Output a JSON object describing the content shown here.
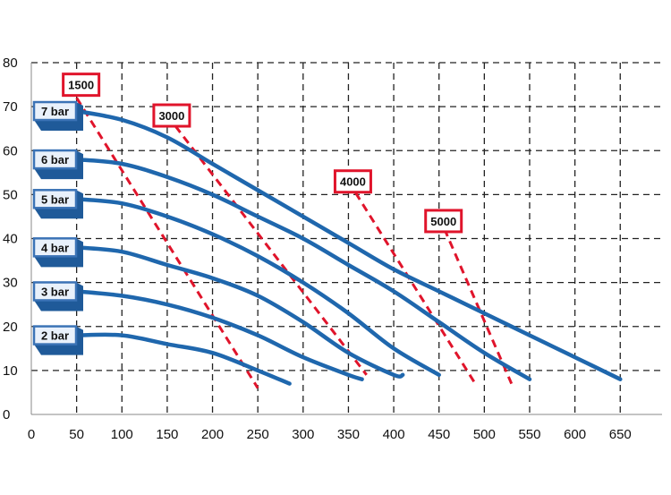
{
  "chart_data": {
    "type": "line",
    "title": "",
    "xlabel": "",
    "ylabel": "",
    "xlim": [
      0,
      700
    ],
    "ylim": [
      0,
      80
    ],
    "x_ticks": [
      "0",
      "50",
      "100",
      "150",
      "200",
      "250",
      "300",
      "350",
      "400",
      "450",
      "500",
      "550",
      "600",
      "650"
    ],
    "y_ticks": [
      "0",
      "10",
      "20",
      "30",
      "40",
      "50",
      "60",
      "70",
      "80"
    ],
    "grid": true,
    "colors": {
      "curve": "#1f67ad",
      "speed_line": "#e0142b",
      "label_box": "#3b73b6"
    },
    "series": [
      {
        "name": "7 bar",
        "x": [
          50,
          100,
          150,
          200,
          250,
          300,
          350,
          400,
          450,
          500,
          550,
          600,
          650
        ],
        "y": [
          69,
          67,
          63,
          57,
          51,
          45,
          39,
          33,
          28,
          23,
          18,
          13,
          8
        ]
      },
      {
        "name": "6 bar",
        "x": [
          50,
          100,
          150,
          200,
          250,
          300,
          350,
          400,
          450,
          500,
          550
        ],
        "y": [
          58,
          57,
          54,
          50,
          45,
          40,
          34,
          28,
          21,
          14,
          8
        ]
      },
      {
        "name": "5 bar",
        "x": [
          50,
          100,
          150,
          200,
          250,
          300,
          350,
          400,
          450
        ],
        "y": [
          49,
          48,
          45,
          41,
          36,
          30,
          23,
          15,
          9
        ]
      },
      {
        "name": "4 bar",
        "x": [
          50,
          100,
          150,
          200,
          250,
          300,
          350,
          400,
          410
        ],
        "y": [
          38,
          37,
          34,
          31,
          27,
          21,
          14,
          9,
          9
        ]
      },
      {
        "name": "3 bar",
        "x": [
          50,
          100,
          150,
          200,
          250,
          300,
          350,
          365
        ],
        "y": [
          28,
          27,
          25,
          22,
          18,
          13,
          9,
          8
        ]
      },
      {
        "name": "2 bar",
        "x": [
          50,
          100,
          150,
          200,
          250,
          285
        ],
        "y": [
          18,
          18,
          16,
          14,
          10,
          7
        ]
      }
    ],
    "speed_lines": [
      {
        "name": "1500",
        "x": [
          50,
          250
        ],
        "y": [
          72,
          6
        ]
      },
      {
        "name": "3000",
        "x": [
          150,
          370
        ],
        "y": [
          68,
          9
        ]
      },
      {
        "name": "4000",
        "x": [
          350,
          490
        ],
        "y": [
          53,
          7
        ]
      },
      {
        "name": "5000",
        "x": [
          450,
          530
        ],
        "y": [
          45,
          7
        ]
      }
    ],
    "speed_label_pos": [
      {
        "name": "1500",
        "x": 50,
        "y": 76
      },
      {
        "name": "3000",
        "x": 150,
        "y": 69
      },
      {
        "name": "4000",
        "x": 350,
        "y": 54
      },
      {
        "name": "5000",
        "x": 450,
        "y": 45
      }
    ]
  }
}
